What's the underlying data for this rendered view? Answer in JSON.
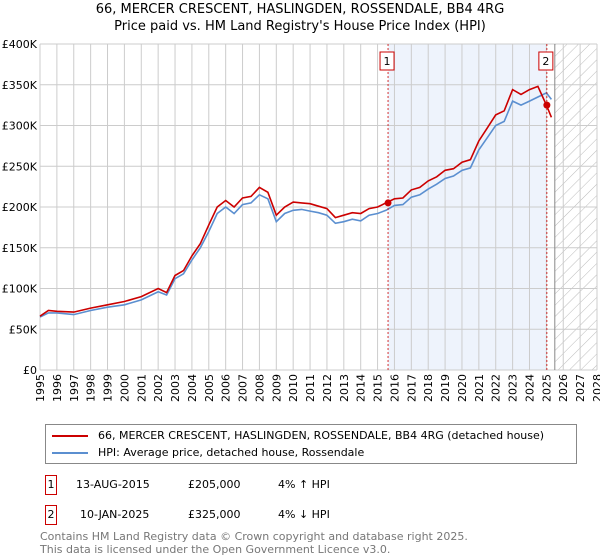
{
  "title": "66, MERCER CRESCENT, HASLINGDEN, ROSSENDALE, BB4 4RG",
  "subtitle": "Price paid vs. HM Land Registry's House Price Index (HPI)",
  "colors": {
    "property": "#cc0000",
    "hpi": "#5b8fd0",
    "shade": "#eef3fc"
  },
  "chart_data": {
    "type": "line",
    "title": "66, MERCER CRESCENT, HASLINGDEN, ROSSENDALE, BB4 4RG — Price paid vs. HM Land Registry's House Price Index (HPI)",
    "xlim": [
      1995,
      2028
    ],
    "ylim": [
      0,
      400000
    ],
    "xticks": [
      "1995",
      "1996",
      "1997",
      "1998",
      "1999",
      "2000",
      "2001",
      "2002",
      "2003",
      "2004",
      "2005",
      "2006",
      "2007",
      "2008",
      "2009",
      "2010",
      "2011",
      "2012",
      "2013",
      "2014",
      "2015",
      "2016",
      "2017",
      "2018",
      "2019",
      "2020",
      "2021",
      "2022",
      "2023",
      "2024",
      "2025",
      "2026",
      "2027",
      "2028"
    ],
    "yticks": [
      {
        "v": 0,
        "label": "£0"
      },
      {
        "v": 50000,
        "label": "£50K"
      },
      {
        "v": 100000,
        "label": "£100K"
      },
      {
        "v": 150000,
        "label": "£150K"
      },
      {
        "v": 200000,
        "label": "£200K"
      },
      {
        "v": 250000,
        "label": "£250K"
      },
      {
        "v": 300000,
        "label": "£300K"
      },
      {
        "v": 350000,
        "label": "£350K"
      },
      {
        "v": 400000,
        "label": "£400K"
      }
    ],
    "x": [
      1995,
      1995.5,
      1996,
      1997,
      1998,
      1999,
      2000,
      2001,
      2002,
      2002.5,
      2003,
      2003.5,
      2004,
      2004.5,
      2005,
      2005.5,
      2006,
      2006.5,
      2007,
      2007.5,
      2008,
      2008.5,
      2009,
      2009.5,
      2010,
      2010.5,
      2011,
      2011.5,
      2012,
      2012.5,
      2013,
      2013.5,
      2014,
      2014.5,
      2015,
      2015.5,
      2016,
      2016.5,
      2017,
      2017.5,
      2018,
      2018.5,
      2019,
      2019.5,
      2020,
      2020.5,
      2021,
      2021.5,
      2022,
      2022.5,
      2023,
      2023.5,
      2024,
      2024.5,
      2025,
      2025.3
    ],
    "series": [
      {
        "name": "66, MERCER CRESCENT, HASLINGDEN, ROSSENDALE, BB4 4RG (detached house)",
        "color": "#cc0000",
        "values": [
          66000,
          73000,
          72000,
          71000,
          76000,
          80000,
          84000,
          90000,
          100000,
          95000,
          116000,
          122000,
          140000,
          155000,
          178000,
          200000,
          208000,
          200000,
          211000,
          213000,
          224000,
          218000,
          190000,
          200000,
          206000,
          205000,
          204000,
          201000,
          198000,
          187000,
          190000,
          193000,
          192000,
          198000,
          200000,
          205000,
          210000,
          211000,
          221000,
          224000,
          232000,
          237000,
          245000,
          247000,
          255000,
          258000,
          281000,
          297000,
          313000,
          318000,
          344000,
          338000,
          344000,
          348000,
          325000,
          310000
        ]
      },
      {
        "name": "HPI: Average price, detached house, Rossendale",
        "color": "#5b8fd0",
        "values": [
          65000,
          70000,
          70000,
          68000,
          73000,
          77000,
          80000,
          86000,
          96000,
          92000,
          112000,
          118000,
          135000,
          150000,
          170000,
          192000,
          200000,
          192000,
          203000,
          205000,
          215000,
          210000,
          182000,
          192000,
          196000,
          197000,
          195000,
          193000,
          190000,
          180000,
          182000,
          185000,
          183000,
          190000,
          192000,
          196000,
          202000,
          203000,
          212000,
          215000,
          222000,
          228000,
          235000,
          238000,
          245000,
          248000,
          270000,
          285000,
          300000,
          305000,
          330000,
          325000,
          330000,
          335000,
          340000,
          332000
        ]
      }
    ],
    "sales": [
      {
        "label": "1",
        "x": 2015.62,
        "y": 205000
      },
      {
        "label": "2",
        "x": 2025.03,
        "y": 325000
      }
    ],
    "shaded_range": [
      2015.62,
      2025.03
    ],
    "forecast_hatch_from": 2025.5
  },
  "legend": {
    "property": "66, MERCER CRESCENT, HASLINGDEN, ROSSENDALE, BB4 4RG (detached house)",
    "hpi": "HPI: Average price, detached house, Rossendale"
  },
  "transactions": [
    {
      "num": "1",
      "date": "13-AUG-2015",
      "price": "£205,000",
      "delta": "4% ↑ HPI"
    },
    {
      "num": "2",
      "date": "10-JAN-2025",
      "price": "£325,000",
      "delta": "4% ↓ HPI"
    }
  ],
  "footer": {
    "line1": "Contains HM Land Registry data © Crown copyright and database right 2025.",
    "line2": "This data is licensed under the Open Government Licence v3.0."
  }
}
